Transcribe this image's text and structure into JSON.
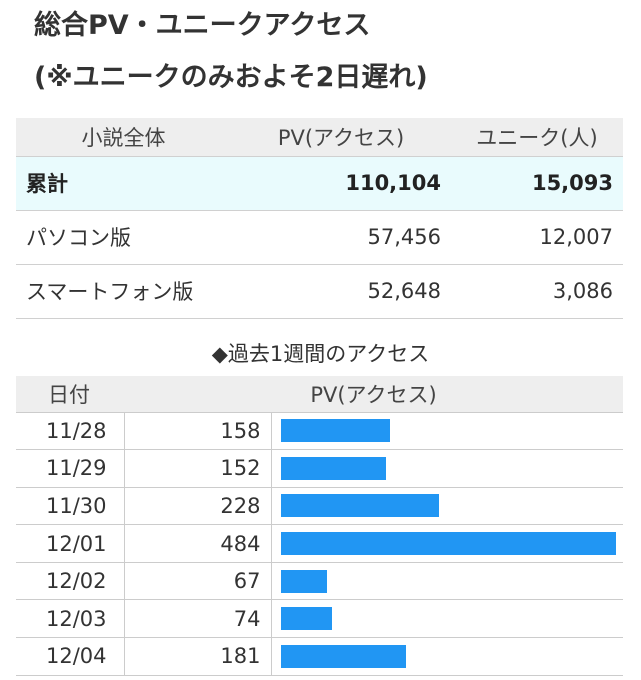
{
  "title": {
    "line1": "総合PV・ユニークアクセス",
    "line2": "(※ユニークのみおよそ2日遅れ)"
  },
  "summary": {
    "headers": [
      "小説全体",
      "PV(アクセス)",
      "ユニーク(人)"
    ],
    "rows": [
      {
        "label": "累計",
        "pv": "110,104",
        "unique": "15,093"
      },
      {
        "label": "パソコン版",
        "pv": "57,456",
        "unique": "12,007"
      },
      {
        "label": "スマートフォン版",
        "pv": "52,648",
        "unique": "3,086"
      }
    ]
  },
  "weekly": {
    "title": "◆過去1週間のアクセス",
    "headers": [
      "日付",
      "PV(アクセス)"
    ],
    "rows": [
      {
        "date": "11/28",
        "pv": "158"
      },
      {
        "date": "11/29",
        "pv": "152"
      },
      {
        "date": "11/30",
        "pv": "228"
      },
      {
        "date": "12/01",
        "pv": "484"
      },
      {
        "date": "12/02",
        "pv": "67"
      },
      {
        "date": "12/03",
        "pv": "74"
      },
      {
        "date": "12/04",
        "pv": "181"
      }
    ]
  },
  "chart_data": {
    "type": "bar",
    "categories": [
      "11/28",
      "11/29",
      "11/30",
      "12/01",
      "12/02",
      "12/03",
      "12/04"
    ],
    "values": [
      158,
      152,
      228,
      484,
      67,
      74,
      181
    ],
    "title": "◆過去1週間のアクセス",
    "xlabel": "日付",
    "ylabel": "PV(アクセス)",
    "bar_color": "#2196f3"
  },
  "colors": {
    "header_bg": "#eeeeee",
    "total_row_bg": "#e9fbfd",
    "bar": "#2196f3"
  }
}
